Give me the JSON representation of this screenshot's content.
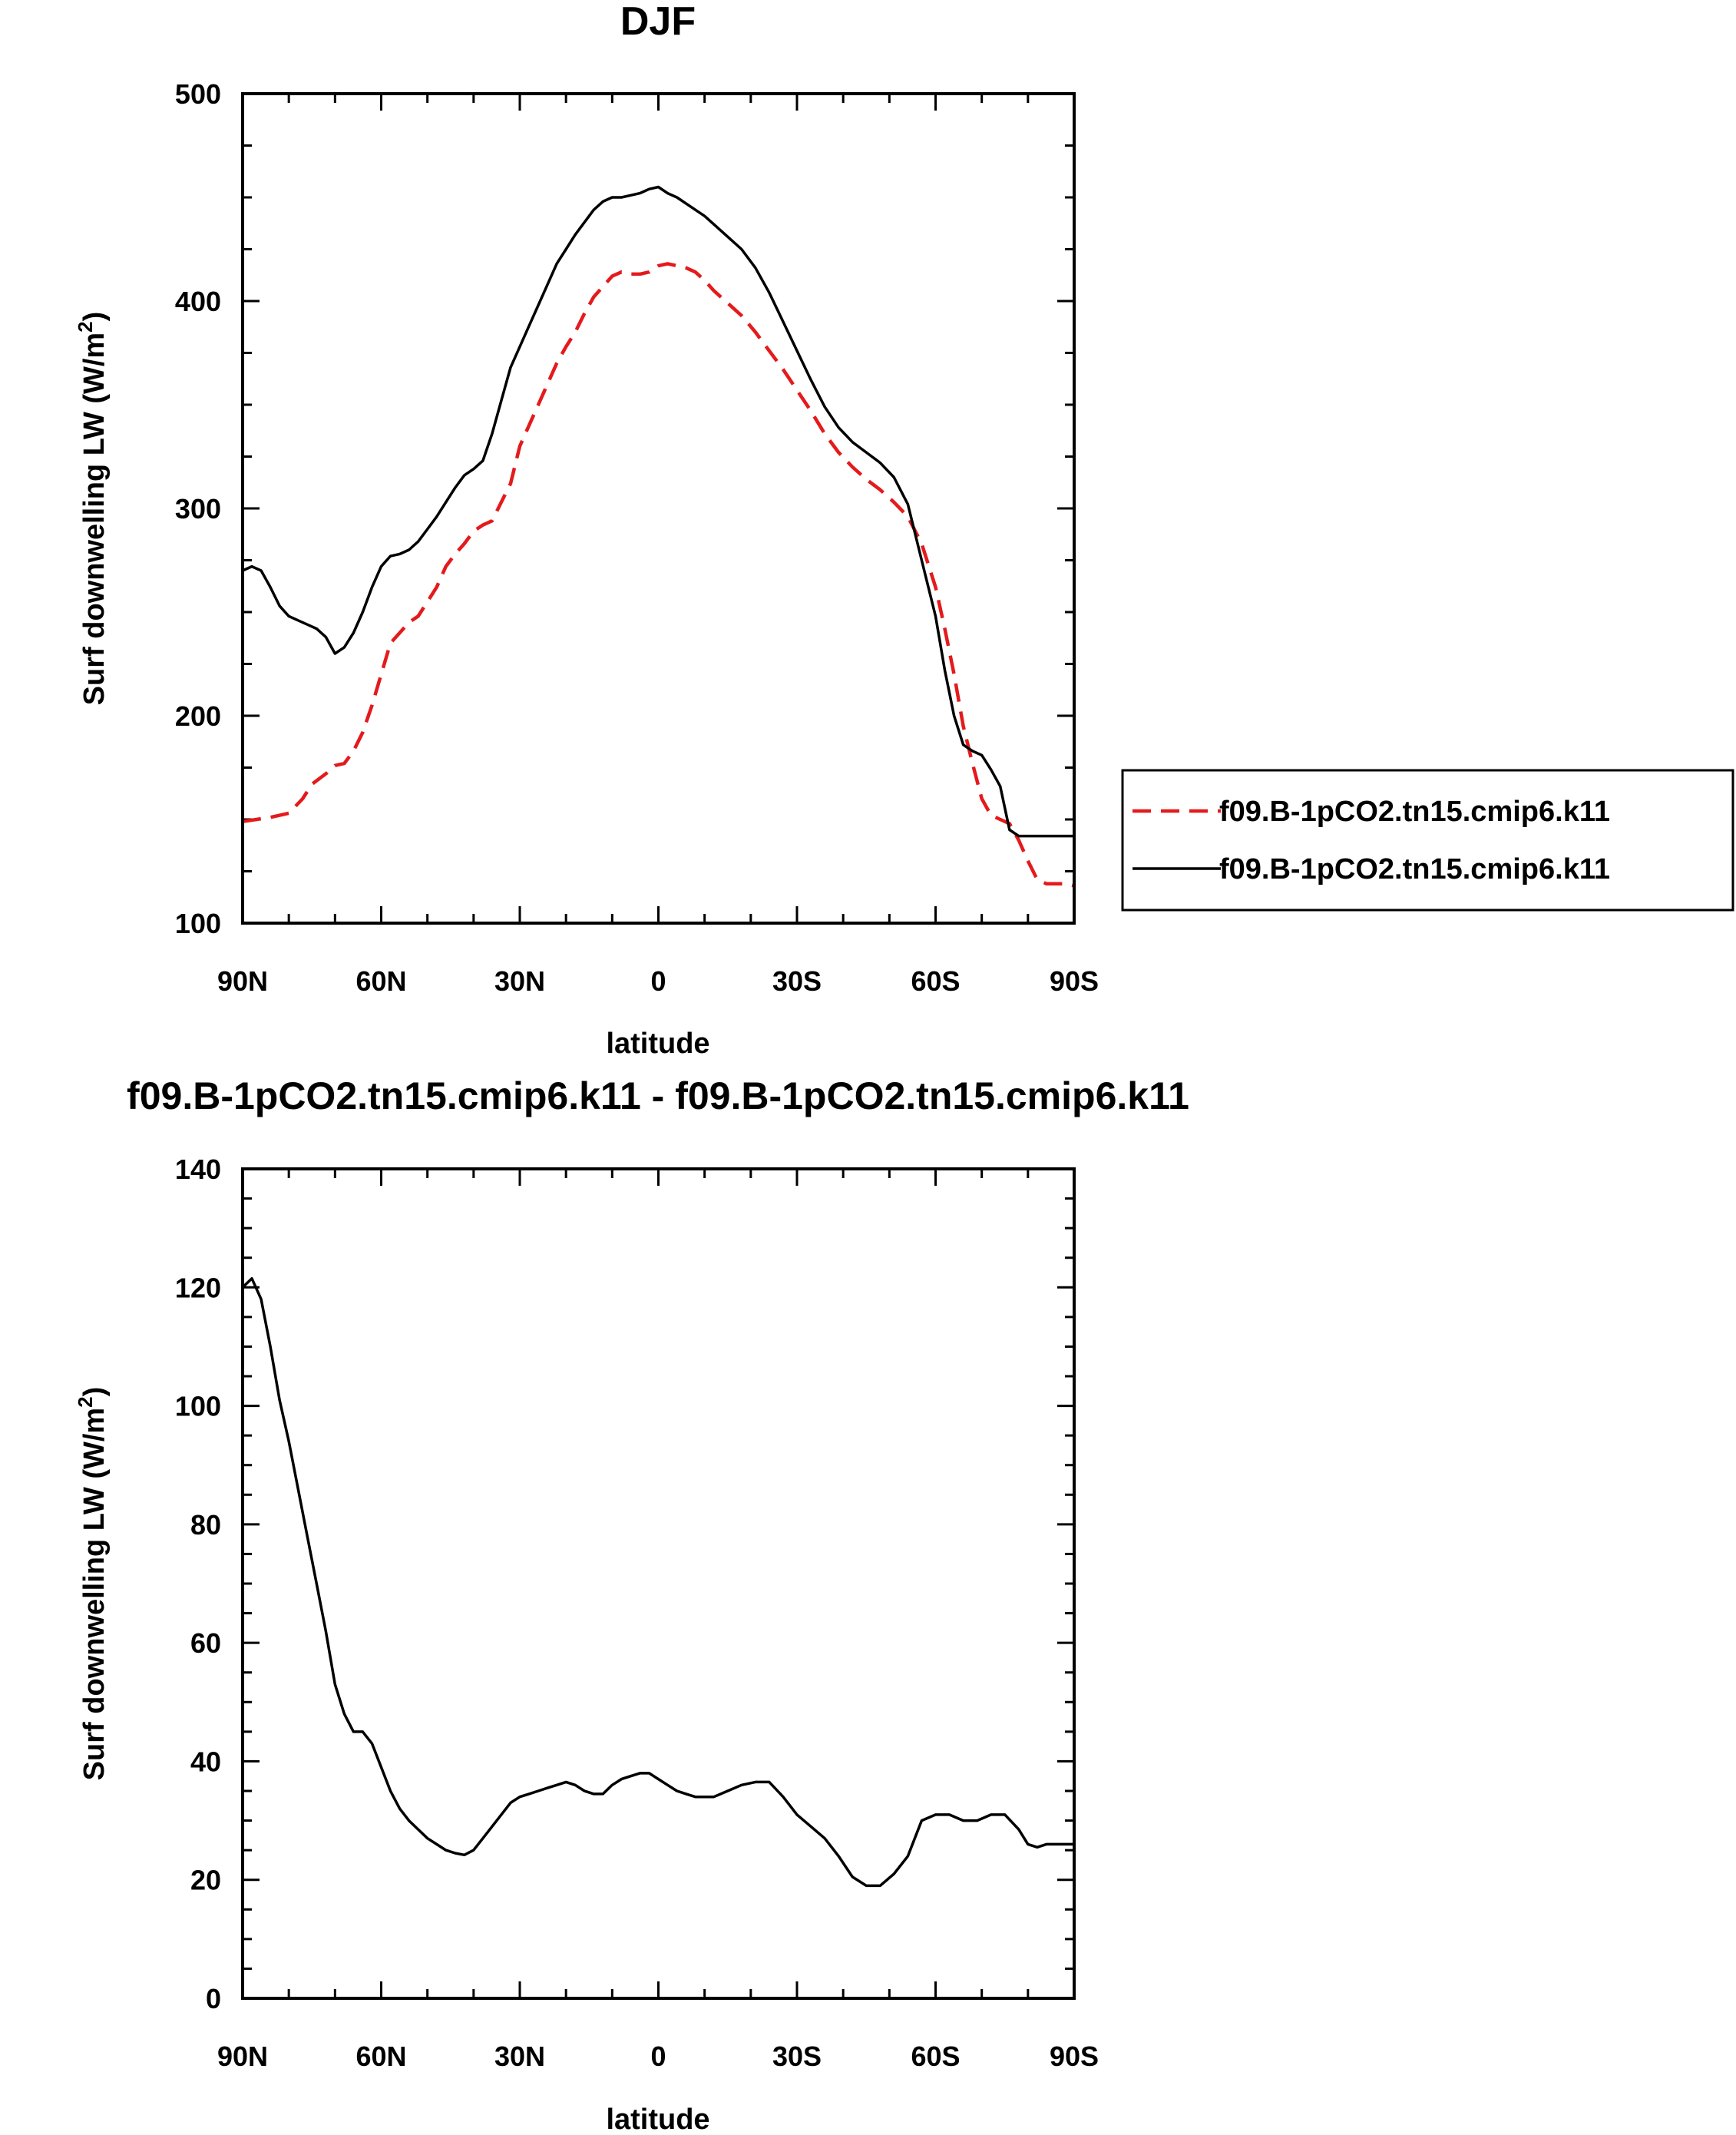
{
  "chart_data": [
    {
      "type": "line",
      "title": "DJF",
      "xlabel": "latitude",
      "ylabel": "Surf downwelling LW (W/m",
      "ylabel_sup": "2",
      "ylabel_tail": ")",
      "xlim": [
        90,
        -90
      ],
      "ylim": [
        100,
        500
      ],
      "xticks": [
        {
          "value": 90,
          "label": "90N"
        },
        {
          "value": 60,
          "label": "60N"
        },
        {
          "value": 30,
          "label": "30N"
        },
        {
          "value": 0,
          "label": "0"
        },
        {
          "value": -30,
          "label": "30S"
        },
        {
          "value": -60,
          "label": "60S"
        },
        {
          "value": -90,
          "label": "90S"
        }
      ],
      "yticks": [
        100,
        200,
        300,
        400,
        500
      ],
      "yminor": 25,
      "legend": "right",
      "series": [
        {
          "name": "f09.B-1pCO2.tn15.cmip6.k11",
          "color": "#e41a1c",
          "dash": "dashed",
          "x": [
            90,
            87,
            84,
            80,
            77,
            75,
            72,
            70,
            68,
            66,
            64,
            62,
            60,
            58,
            56,
            54,
            52,
            50,
            48,
            46,
            44,
            42,
            40,
            38,
            36,
            34,
            32,
            30,
            28,
            26,
            24,
            22,
            20,
            18,
            16,
            14,
            12,
            10,
            8,
            6,
            4,
            2,
            0,
            -2,
            -4,
            -6,
            -8,
            -10,
            -12,
            -15,
            -18,
            -21,
            -24,
            -27,
            -30,
            -33,
            -36,
            -39,
            -42,
            -45,
            -48,
            -51,
            -54,
            -57,
            -60,
            -62,
            -64,
            -66,
            -68,
            -70,
            -72,
            -74,
            -76,
            -78,
            -80,
            -82,
            -84,
            -86,
            -88,
            -90
          ],
          "y": [
            149,
            150,
            151,
            153,
            160,
            167,
            172,
            176,
            177,
            183,
            192,
            205,
            220,
            235,
            240,
            245,
            248,
            255,
            262,
            272,
            278,
            283,
            289,
            292,
            294,
            303,
            312,
            330,
            340,
            350,
            360,
            370,
            378,
            385,
            394,
            402,
            407,
            412,
            414,
            413,
            413,
            414,
            417,
            418,
            417,
            416,
            414,
            410,
            405,
            399,
            393,
            385,
            376,
            367,
            357,
            347,
            336,
            327,
            320,
            314,
            309,
            303,
            296,
            283,
            262,
            242,
            220,
            195,
            177,
            160,
            152,
            150,
            148,
            140,
            130,
            121,
            119,
            119,
            119,
            118
          ]
        },
        {
          "name": "f09.B-1pCO2.tn15.cmip6.k11",
          "color": "#000000",
          "dash": "solid",
          "x": [
            90,
            88,
            86,
            84,
            82,
            80,
            78,
            76,
            74,
            72,
            70,
            68,
            66,
            64,
            62,
            60,
            58,
            56,
            54,
            52,
            50,
            48,
            46,
            44,
            42,
            40,
            38,
            36,
            34,
            32,
            30,
            28,
            26,
            24,
            22,
            20,
            18,
            16,
            14,
            12,
            10,
            8,
            6,
            4,
            2,
            0,
            -2,
            -4,
            -6,
            -8,
            -10,
            -12,
            -15,
            -18,
            -21,
            -24,
            -27,
            -30,
            -33,
            -36,
            -39,
            -42,
            -45,
            -48,
            -51,
            -54,
            -57,
            -60,
            -62,
            -64,
            -66,
            -68,
            -70,
            -72,
            -74,
            -76,
            -78,
            -80,
            -82,
            -84,
            -86,
            -88,
            -90
          ],
          "y": [
            270,
            272,
            270,
            262,
            253,
            248,
            246,
            244,
            242,
            238,
            230,
            233,
            240,
            250,
            262,
            272,
            277,
            278,
            280,
            284,
            290,
            296,
            303,
            310,
            316,
            319,
            323,
            336,
            352,
            368,
            378,
            388,
            398,
            408,
            418,
            425,
            432,
            438,
            444,
            448,
            450,
            450,
            451,
            452,
            454,
            455,
            452,
            450,
            447,
            444,
            441,
            437,
            431,
            425,
            416,
            404,
            390,
            376,
            362,
            349,
            339,
            332,
            327,
            322,
            315,
            302,
            275,
            248,
            222,
            200,
            186,
            183,
            181,
            174,
            166,
            145,
            142,
            142,
            142,
            142,
            142,
            142,
            142
          ]
        }
      ]
    },
    {
      "type": "line",
      "title": "f09.B-1pCO2.tn15.cmip6.k11 - f09.B-1pCO2.tn15.cmip6.k11",
      "xlabel": "latitude",
      "ylabel": "Surf downwelling LW (W/m",
      "ylabel_sup": "2",
      "ylabel_tail": ")",
      "xlim": [
        90,
        -90
      ],
      "ylim": [
        0,
        140
      ],
      "xticks": [
        {
          "value": 90,
          "label": "90N"
        },
        {
          "value": 60,
          "label": "60N"
        },
        {
          "value": 30,
          "label": "30N"
        },
        {
          "value": 0,
          "label": "0"
        },
        {
          "value": -30,
          "label": "30S"
        },
        {
          "value": -60,
          "label": "60S"
        },
        {
          "value": -90,
          "label": "90S"
        }
      ],
      "yticks": [
        0,
        20,
        40,
        60,
        80,
        100,
        120,
        140
      ],
      "yminor": 5,
      "legend": "none",
      "series": [
        {
          "color": "#000000",
          "dash": "solid",
          "x": [
            90,
            88,
            86,
            84,
            82,
            80,
            78,
            76,
            74,
            72,
            70,
            68,
            66,
            64,
            62,
            60,
            58,
            56,
            54,
            52,
            50,
            48,
            46,
            44,
            42,
            40,
            38,
            36,
            34,
            32,
            30,
            28,
            26,
            24,
            22,
            20,
            18,
            16,
            14,
            12,
            10,
            8,
            6,
            4,
            2,
            0,
            -2,
            -4,
            -6,
            -8,
            -10,
            -12,
            -15,
            -18,
            -21,
            -24,
            -27,
            -30,
            -33,
            -36,
            -39,
            -42,
            -45,
            -48,
            -51,
            -54,
            -57,
            -60,
            -63,
            -66,
            -69,
            -72,
            -75,
            -78,
            -80,
            -82,
            -84,
            -86,
            -88,
            -90
          ],
          "y": [
            120,
            121.5,
            118,
            110,
            101,
            94,
            86,
            78,
            70,
            62,
            53,
            48,
            45,
            45,
            43,
            39,
            35,
            32,
            30,
            28.5,
            27,
            26,
            25,
            24.5,
            24.2,
            25,
            27,
            29,
            31,
            33,
            34,
            34.5,
            35,
            35.5,
            36,
            36.5,
            36,
            35,
            34.5,
            34.5,
            36,
            37,
            37.5,
            38,
            38,
            37,
            36,
            35,
            34.5,
            34,
            34,
            34,
            35,
            36,
            36.5,
            36.5,
            34,
            31,
            29,
            27,
            24,
            20.5,
            19,
            19,
            21,
            24,
            30,
            31,
            31,
            30,
            30,
            31,
            31,
            28.5,
            26,
            25.5,
            26,
            26,
            26,
            26
          ]
        }
      ]
    }
  ]
}
